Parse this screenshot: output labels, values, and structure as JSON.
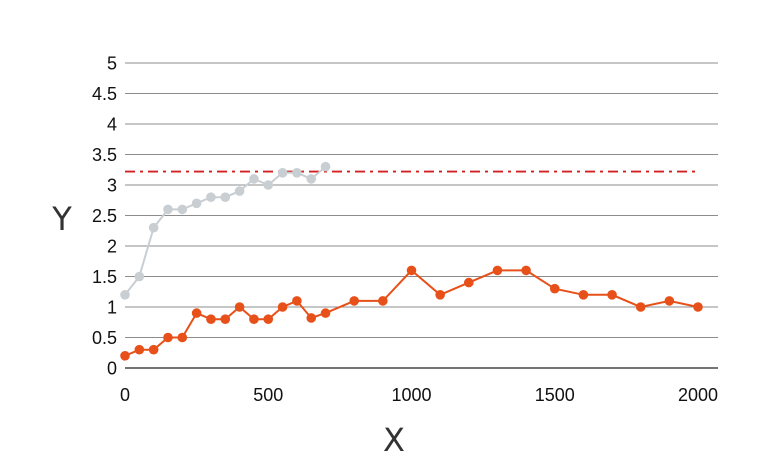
{
  "chart_data": {
    "type": "line",
    "xlabel": "X",
    "ylabel": "Y",
    "xlim": [
      0,
      2000
    ],
    "ylim": [
      0,
      5
    ],
    "x_ticks": [
      0,
      500,
      1000,
      1500,
      2000
    ],
    "y_ticks": [
      0,
      0.5,
      1,
      1.5,
      2,
      2.5,
      3,
      3.5,
      4,
      4.5,
      5
    ],
    "x_tick_labels": [
      "0",
      "500",
      "1000",
      "1500",
      "2000"
    ],
    "y_tick_labels": [
      "0",
      "0.5",
      "1",
      "1.5",
      "2",
      "2.5",
      "3",
      "3.5",
      "4",
      "4.5",
      "5"
    ],
    "grid": "horizontal",
    "series": [
      {
        "color": "#c8ced2",
        "x": [
          0,
          50,
          100,
          150,
          200,
          250,
          300,
          350,
          400,
          450,
          500,
          550,
          600,
          650,
          700
        ],
        "y": [
          1.2,
          1.5,
          2.3,
          2.6,
          2.6,
          2.7,
          2.8,
          2.8,
          2.9,
          3.1,
          3.0,
          3.2,
          3.2,
          3.1,
          3.3
        ]
      },
      {
        "color": "#e8501a",
        "x": [
          0,
          50,
          100,
          150,
          200,
          250,
          300,
          350,
          400,
          450,
          500,
          550,
          600,
          650,
          700,
          800,
          900,
          1000,
          1100,
          1200,
          1300,
          1400,
          1500,
          1600,
          1700,
          1800,
          1900,
          2000
        ],
        "y": [
          0.2,
          0.3,
          0.3,
          0.5,
          0.5,
          0.9,
          0.8,
          0.8,
          1.0,
          0.8,
          0.8,
          1.0,
          1.1,
          0.82,
          0.9,
          1.1,
          1.1,
          1.6,
          1.2,
          1.4,
          1.6,
          1.6,
          1.3,
          1.2,
          1.2,
          1.0,
          1.1,
          1.0
        ]
      }
    ],
    "reference_line": {
      "y": 3.22,
      "color": "#d42020",
      "style": "dash-dot"
    }
  }
}
